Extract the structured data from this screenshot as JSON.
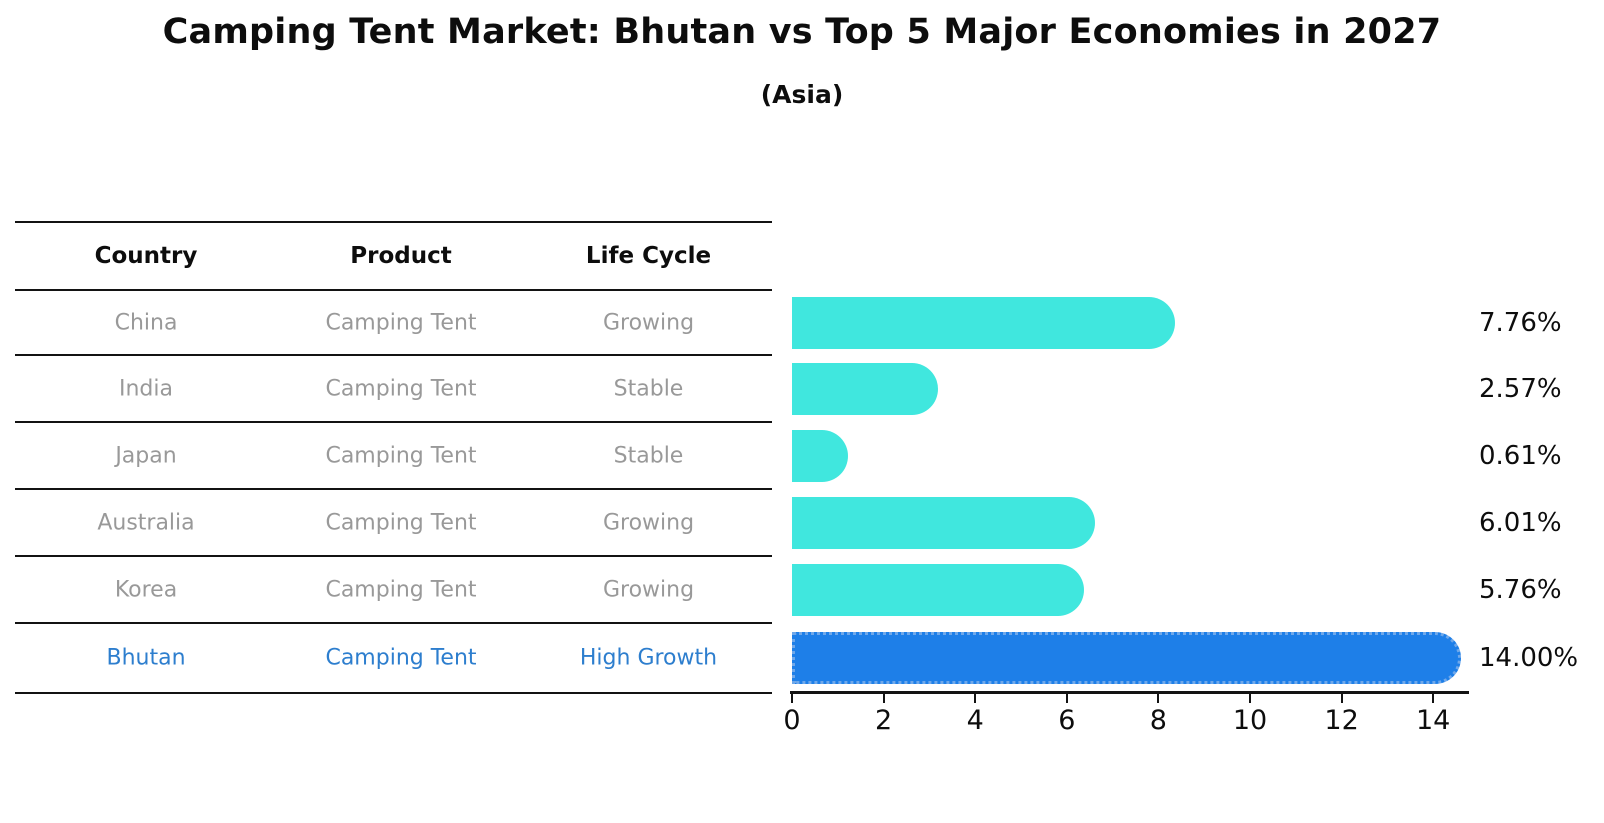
{
  "header": {
    "title": "Camping Tent Market: Bhutan vs Top 5 Major Economies in 2027",
    "subtitle": "(Asia)"
  },
  "table": {
    "columns": [
      "Country",
      "Product",
      "Life Cycle"
    ],
    "rows": [
      {
        "country": "China",
        "product": "Camping Tent",
        "life_cycle": "Growing",
        "highlight": false
      },
      {
        "country": "India",
        "product": "Camping Tent",
        "life_cycle": "Stable",
        "highlight": false
      },
      {
        "country": "Japan",
        "product": "Camping Tent",
        "life_cycle": "Stable",
        "highlight": false
      },
      {
        "country": "Australia",
        "product": "Camping Tent",
        "life_cycle": "Growing",
        "highlight": false
      },
      {
        "country": "Korea",
        "product": "Camping Tent",
        "life_cycle": "Growing",
        "highlight": false
      },
      {
        "country": "Bhutan",
        "product": "Camping Tent",
        "life_cycle": "High Growth",
        "highlight": true
      }
    ]
  },
  "chart_data": {
    "type": "bar",
    "orientation": "horizontal",
    "title": "Camping Tent Market: Bhutan vs Top 5 Major Economies in 2027",
    "subtitle": "(Asia)",
    "categories": [
      "China",
      "India",
      "Japan",
      "Australia",
      "Korea",
      "Bhutan"
    ],
    "values": [
      7.76,
      2.57,
      0.61,
      6.01,
      5.76,
      14.0
    ],
    "value_labels": [
      "7.76%",
      "2.57%",
      "0.61%",
      "6.01%",
      "5.76%",
      "14.00%"
    ],
    "highlight_category": "Bhutan",
    "xlim": [
      0,
      14.7
    ],
    "x_ticks": [
      0,
      2,
      4,
      6,
      8,
      10,
      12,
      14
    ],
    "x_tick_labels": [
      "0",
      "2",
      "4",
      "6",
      "8",
      "10",
      "12",
      "14"
    ],
    "grid": false,
    "legend": false,
    "bar_color": "#40e7de",
    "highlight_bar_color": "#1e7fe8",
    "highlight_edge_color": "#6fa8ea",
    "muted_text_color": "#999999",
    "highlight_text_color": "#2d7ece"
  }
}
